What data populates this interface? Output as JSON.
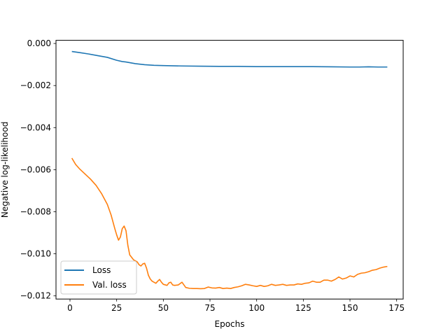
{
  "chart_data": {
    "type": "line",
    "title": "",
    "xlabel": "Epochs",
    "ylabel": "Negative log-likelihood",
    "xlim": [
      -7.5,
      178.5
    ],
    "ylim": [
      -0.01215,
      0.00015
    ],
    "x_ticks": [
      0,
      25,
      50,
      75,
      100,
      125,
      150,
      175
    ],
    "x_tick_labels": [
      "0",
      "25",
      "50",
      "75",
      "100",
      "125",
      "150",
      "175"
    ],
    "y_ticks": [
      0.0,
      -0.002,
      -0.004,
      -0.006,
      -0.008,
      -0.01,
      -0.012
    ],
    "y_tick_labels": [
      "0.000",
      "−0.002",
      "−0.004",
      "−0.006",
      "−0.008",
      "−0.010",
      "−0.012"
    ],
    "grid": false,
    "legend_position": "lower-left",
    "series": [
      {
        "name": "Loss",
        "color": "#1f77b4",
        "x": [
          1,
          5,
          10,
          15,
          20,
          25,
          28,
          30,
          35,
          40,
          45,
          50,
          60,
          70,
          80,
          90,
          100,
          110,
          120,
          130,
          140,
          150,
          155,
          160,
          165,
          170
        ],
        "y": [
          -0.00038,
          -0.00043,
          -0.0005,
          -0.00058,
          -0.00066,
          -0.0008,
          -0.00086,
          -0.00088,
          -0.00096,
          -0.00101,
          -0.00104,
          -0.00105,
          -0.00107,
          -0.00108,
          -0.00109,
          -0.00109,
          -0.0011,
          -0.0011,
          -0.0011,
          -0.0011,
          -0.00111,
          -0.00112,
          -0.00112,
          -0.00111,
          -0.00112,
          -0.00112
        ]
      },
      {
        "name": "Val. loss",
        "color": "#ff7f0e",
        "x": [
          1,
          3,
          5,
          8,
          11,
          14,
          17,
          20,
          22,
          24,
          25,
          26,
          27,
          28,
          29,
          30,
          31,
          32,
          34,
          36,
          37,
          38,
          39,
          40,
          41,
          42,
          43,
          44,
          46,
          47,
          48,
          49,
          50,
          52,
          53,
          54,
          55,
          56,
          58,
          60,
          62,
          64,
          66,
          68,
          70,
          72,
          74,
          76,
          78,
          80,
          82,
          84,
          86,
          88,
          90,
          92,
          94,
          96,
          98,
          100,
          102,
          104,
          106,
          108,
          110,
          112,
          114,
          116,
          118,
          120,
          122,
          124,
          126,
          128,
          130,
          132,
          134,
          136,
          138,
          140,
          142,
          144,
          146,
          148,
          150,
          152,
          154,
          156,
          158,
          160,
          162,
          164,
          166,
          168,
          170
        ],
        "y": [
          -0.00545,
          -0.00575,
          -0.00595,
          -0.0062,
          -0.00645,
          -0.00675,
          -0.00715,
          -0.00765,
          -0.00815,
          -0.0088,
          -0.0091,
          -0.00935,
          -0.0092,
          -0.0088,
          -0.00868,
          -0.0089,
          -0.0096,
          -0.01005,
          -0.01028,
          -0.01038,
          -0.01052,
          -0.01058,
          -0.01048,
          -0.01045,
          -0.01068,
          -0.01102,
          -0.0112,
          -0.0113,
          -0.0114,
          -0.0113,
          -0.01122,
          -0.01135,
          -0.01145,
          -0.0115,
          -0.01138,
          -0.01135,
          -0.01148,
          -0.0115,
          -0.01148,
          -0.01135,
          -0.0116,
          -0.01164,
          -0.01165,
          -0.01165,
          -0.01166,
          -0.01165,
          -0.01158,
          -0.01162,
          -0.01163,
          -0.0116,
          -0.01165,
          -0.01163,
          -0.01165,
          -0.0116,
          -0.01157,
          -0.01152,
          -0.01145,
          -0.01148,
          -0.01152,
          -0.01155,
          -0.0115,
          -0.01155,
          -0.01152,
          -0.01145,
          -0.0115,
          -0.01148,
          -0.01145,
          -0.0115,
          -0.01148,
          -0.01148,
          -0.01143,
          -0.01145,
          -0.0114,
          -0.01138,
          -0.0113,
          -0.01135,
          -0.01135,
          -0.01125,
          -0.01125,
          -0.0113,
          -0.01122,
          -0.0111,
          -0.0112,
          -0.01115,
          -0.01105,
          -0.0111,
          -0.01098,
          -0.01092,
          -0.0109,
          -0.01085,
          -0.01078,
          -0.01075,
          -0.01068,
          -0.01063,
          -0.0106
        ]
      }
    ]
  }
}
